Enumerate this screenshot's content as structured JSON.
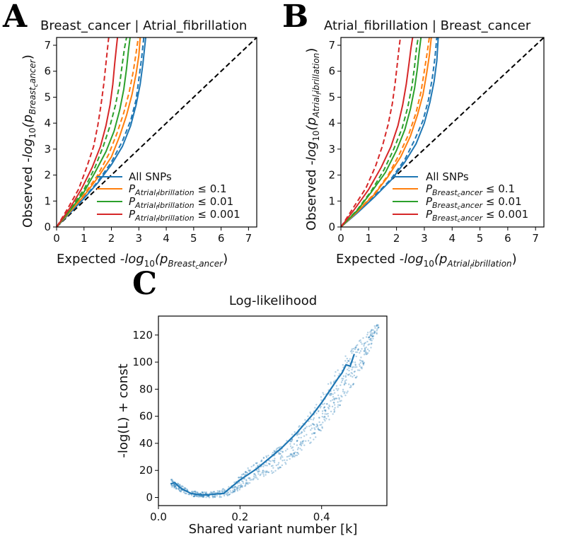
{
  "panels": {
    "A": {
      "letter": "A",
      "title": "Breast_cancer | Atrial_fibrillation",
      "xlabel_prefix": "Expected -",
      "xlabel_fn": "log",
      "xlabel_sub10": "10",
      "xlabel_p": "(p",
      "xlabel_sub": "Breast",
      "xlabel_subsub": "c",
      "xlabel_sub2": "ancer",
      "xlabel_close": ")",
      "ylabel_prefix": "Observed -",
      "ylabel_fn": "log",
      "ylabel_sub10": "10",
      "ylabel_p": "(p",
      "ylabel_sub": "Breast",
      "ylabel_subsub": "c",
      "ylabel_sub2": "ancer",
      "ylabel_close": ")",
      "legend": [
        {
          "label": "All SNPs",
          "color": "#1f77b4",
          "kind": "plain"
        },
        {
          "p": "P",
          "sub": "Atrial",
          "subsub": "f",
          "sub2": "ibrillation",
          "rel": " ≤ 0.1",
          "color": "#ff7f0e",
          "kind": "math"
        },
        {
          "p": "P",
          "sub": "Atrial",
          "subsub": "f",
          "sub2": "ibrillation",
          "rel": " ≤ 0.01",
          "color": "#2ca02c",
          "kind": "math"
        },
        {
          "p": "P",
          "sub": "Atrial",
          "subsub": "f",
          "sub2": "ibrillation",
          "rel": " ≤ 0.001",
          "color": "#d62728",
          "kind": "math"
        }
      ]
    },
    "B": {
      "letter": "B",
      "title": "Atrial_fibrillation | Breast_cancer",
      "xlabel_prefix": "Expected -",
      "xlabel_fn": "log",
      "xlabel_sub10": "10",
      "xlabel_p": "(p",
      "xlabel_sub": "Atrial",
      "xlabel_subsub": "f",
      "xlabel_sub2": "ibrillation",
      "xlabel_close": ")",
      "ylabel_prefix": "Observed -",
      "ylabel_fn": "log",
      "ylabel_sub10": "10",
      "ylabel_p": "(p",
      "ylabel_sub": "Atrial",
      "ylabel_subsub": "f",
      "ylabel_sub2": "ibrillation",
      "ylabel_close": ")",
      "legend": [
        {
          "label": "All SNPs",
          "color": "#1f77b4",
          "kind": "plain"
        },
        {
          "p": "P",
          "sub": "Breast",
          "subsub": "c",
          "sub2": "ancer",
          "rel": " ≤ 0.1",
          "color": "#ff7f0e",
          "kind": "math"
        },
        {
          "p": "P",
          "sub": "Breast",
          "subsub": "c",
          "sub2": "ancer",
          "rel": " ≤ 0.01",
          "color": "#2ca02c",
          "kind": "math"
        },
        {
          "p": "P",
          "sub": "Breast",
          "subsub": "c",
          "sub2": "ancer",
          "rel": " ≤ 0.001",
          "color": "#d62728",
          "kind": "math"
        }
      ]
    },
    "C": {
      "letter": "C",
      "title": "Log-likelihood",
      "xlabel": "Shared variant number [k]",
      "ylabel": "-log(L) + const"
    }
  },
  "chart_data": [
    {
      "id": "A",
      "type": "line",
      "title": "Breast_cancer | Atrial_fibrillation",
      "xlim": [
        0,
        7.3
      ],
      "ylim": [
        0,
        7.3
      ],
      "xticks": [
        0,
        1,
        2,
        3,
        4,
        5,
        6,
        7
      ],
      "yticks": [
        0,
        1,
        2,
        3,
        4,
        5,
        6,
        7
      ],
      "diagonal": {
        "style": "dashed",
        "color": "#000000"
      },
      "series": [
        {
          "name": "All SNPs",
          "color": "#1f77b4",
          "style": "solid",
          "x": [
            0,
            0.5,
            1.0,
            1.5,
            2.0,
            2.4,
            2.7,
            2.9,
            3.05,
            3.15,
            3.25
          ],
          "y": [
            0,
            0.55,
            1.1,
            1.7,
            2.4,
            3.1,
            3.9,
            4.7,
            5.5,
            6.3,
            7.3
          ]
        },
        {
          "name": "All SNPs (theoretical)",
          "color": "#1f77b4",
          "style": "dashed",
          "x": [
            0,
            0.5,
            1.0,
            1.5,
            2.0,
            2.4,
            2.7,
            2.9,
            3.0,
            3.1,
            3.18
          ],
          "y": [
            0,
            0.56,
            1.12,
            1.75,
            2.5,
            3.3,
            4.1,
            4.9,
            5.7,
            6.5,
            7.3
          ]
        },
        {
          "name": "P ≤ 0.1",
          "color": "#ff7f0e",
          "style": "solid",
          "x": [
            0,
            0.5,
            1.0,
            1.5,
            2.0,
            2.3,
            2.55,
            2.75,
            2.9,
            3.0,
            3.05
          ],
          "y": [
            0,
            0.6,
            1.2,
            1.9,
            2.7,
            3.5,
            4.3,
            5.1,
            5.9,
            6.6,
            7.3
          ]
        },
        {
          "name": "P ≤ 0.1 (theoretical)",
          "color": "#ff7f0e",
          "style": "dashed",
          "x": [
            0,
            0.5,
            1.0,
            1.5,
            1.9,
            2.2,
            2.45,
            2.65,
            2.8,
            2.9,
            2.98
          ],
          "y": [
            0,
            0.62,
            1.25,
            2.0,
            2.8,
            3.6,
            4.4,
            5.2,
            6.0,
            6.7,
            7.3
          ]
        },
        {
          "name": "P ≤ 0.01",
          "color": "#2ca02c",
          "style": "solid",
          "x": [
            0,
            0.5,
            1.0,
            1.4,
            1.8,
            2.1,
            2.3,
            2.45,
            2.55,
            2.62,
            2.68
          ],
          "y": [
            0,
            0.65,
            1.35,
            2.1,
            2.9,
            3.7,
            4.5,
            5.3,
            6.1,
            6.8,
            7.3
          ]
        },
        {
          "name": "P ≤ 0.01 (theoretical)",
          "color": "#2ca02c",
          "style": "dashed",
          "x": [
            0,
            0.5,
            1.0,
            1.4,
            1.7,
            1.95,
            2.15,
            2.3,
            2.4,
            2.48,
            2.55
          ],
          "y": [
            0,
            0.7,
            1.45,
            2.3,
            3.1,
            3.9,
            4.7,
            5.5,
            6.3,
            6.9,
            7.3
          ]
        },
        {
          "name": "P ≤ 0.001",
          "color": "#d62728",
          "style": "solid",
          "x": [
            0,
            0.5,
            0.9,
            1.3,
            1.6,
            1.8,
            1.95,
            2.05,
            2.12,
            2.18,
            2.22
          ],
          "y": [
            0,
            0.75,
            1.45,
            2.3,
            3.1,
            3.9,
            4.7,
            5.5,
            6.3,
            6.9,
            7.3
          ]
        },
        {
          "name": "P ≤ 0.001 (theoretical)",
          "color": "#d62728",
          "style": "dashed",
          "x": [
            0,
            0.4,
            0.8,
            1.1,
            1.35,
            1.5,
            1.62,
            1.72,
            1.8,
            1.86,
            1.9
          ],
          "y": [
            0,
            0.7,
            1.45,
            2.3,
            3.1,
            3.9,
            4.7,
            5.5,
            6.3,
            6.9,
            7.3
          ]
        }
      ]
    },
    {
      "id": "B",
      "type": "line",
      "title": "Atrial_fibrillation | Breast_cancer",
      "xlim": [
        0,
        7.3
      ],
      "ylim": [
        0,
        7.3
      ],
      "xticks": [
        0,
        1,
        2,
        3,
        4,
        5,
        6,
        7
      ],
      "yticks": [
        0,
        1,
        2,
        3,
        4,
        5,
        6,
        7
      ],
      "diagonal": {
        "style": "dashed",
        "color": "#000000"
      },
      "series": [
        {
          "name": "All SNPs",
          "color": "#1f77b4",
          "style": "solid",
          "x": [
            0,
            0.6,
            1.2,
            1.8,
            2.3,
            2.7,
            3.0,
            3.2,
            3.35,
            3.45,
            3.5
          ],
          "y": [
            0,
            0.55,
            1.15,
            1.8,
            2.5,
            3.2,
            4.0,
            4.8,
            5.6,
            6.4,
            7.3
          ]
        },
        {
          "name": "All SNPs (theoretical)",
          "color": "#1f77b4",
          "style": "dashed",
          "x": [
            0,
            0.6,
            1.2,
            1.8,
            2.3,
            2.65,
            2.95,
            3.15,
            3.28,
            3.38,
            3.45
          ],
          "y": [
            0,
            0.57,
            1.18,
            1.85,
            2.6,
            3.35,
            4.1,
            4.9,
            5.7,
            6.5,
            7.3
          ]
        },
        {
          "name": "P ≤ 0.1",
          "color": "#ff7f0e",
          "style": "solid",
          "x": [
            0,
            0.6,
            1.2,
            1.7,
            2.15,
            2.5,
            2.75,
            2.95,
            3.08,
            3.18,
            3.25
          ],
          "y": [
            0,
            0.6,
            1.25,
            1.95,
            2.7,
            3.5,
            4.3,
            5.1,
            5.9,
            6.6,
            7.3
          ]
        },
        {
          "name": "P ≤ 0.1 (theoretical)",
          "color": "#ff7f0e",
          "style": "dashed",
          "x": [
            0,
            0.6,
            1.2,
            1.7,
            2.1,
            2.45,
            2.7,
            2.88,
            3.0,
            3.1,
            3.18
          ],
          "y": [
            0,
            0.62,
            1.28,
            2.0,
            2.8,
            3.6,
            4.4,
            5.2,
            6.0,
            6.7,
            7.3
          ]
        },
        {
          "name": "P ≤ 0.01",
          "color": "#2ca02c",
          "style": "solid",
          "x": [
            0,
            0.6,
            1.1,
            1.6,
            2.0,
            2.3,
            2.5,
            2.65,
            2.75,
            2.82,
            2.88
          ],
          "y": [
            0,
            0.65,
            1.35,
            2.1,
            2.95,
            3.75,
            4.55,
            5.35,
            6.1,
            6.8,
            7.3
          ]
        },
        {
          "name": "P ≤ 0.01 (theoretical)",
          "color": "#2ca02c",
          "style": "dashed",
          "x": [
            0,
            0.6,
            1.1,
            1.55,
            1.9,
            2.2,
            2.4,
            2.55,
            2.65,
            2.72,
            2.78
          ],
          "y": [
            0,
            0.68,
            1.4,
            2.2,
            3.0,
            3.8,
            4.6,
            5.4,
            6.2,
            6.9,
            7.3
          ]
        },
        {
          "name": "P ≤ 0.001",
          "color": "#d62728",
          "style": "solid",
          "x": [
            0,
            0.5,
            1.0,
            1.45,
            1.8,
            2.05,
            2.22,
            2.35,
            2.45,
            2.52,
            2.58
          ],
          "y": [
            0,
            0.7,
            1.45,
            2.3,
            3.1,
            3.9,
            4.7,
            5.5,
            6.3,
            6.9,
            7.3
          ]
        },
        {
          "name": "P ≤ 0.001 (theoretical)",
          "color": "#d62728",
          "style": "dashed",
          "x": [
            0,
            0.45,
            0.9,
            1.25,
            1.5,
            1.7,
            1.85,
            1.95,
            2.03,
            2.09,
            2.14
          ],
          "y": [
            0,
            0.75,
            1.5,
            2.35,
            3.15,
            3.95,
            4.75,
            5.55,
            6.3,
            6.9,
            7.3
          ]
        }
      ]
    },
    {
      "id": "C",
      "type": "line",
      "title": "Log-likelihood",
      "xlabel": "Shared variant number [k]",
      "ylabel": "-log(L) + const",
      "xlim": [
        0.0,
        0.56
      ],
      "ylim": [
        -6,
        134
      ],
      "xticks": [
        0.0,
        0.2,
        0.4
      ],
      "yticks": [
        0,
        20,
        40,
        60,
        80,
        100,
        120
      ],
      "series": [
        {
          "name": "mean",
          "color": "#1f77b4",
          "style": "solid",
          "x": [
            0.03,
            0.04,
            0.05,
            0.06,
            0.08,
            0.1,
            0.12,
            0.14,
            0.16,
            0.18,
            0.2,
            0.22,
            0.24,
            0.26,
            0.28,
            0.3,
            0.32,
            0.34,
            0.36,
            0.38,
            0.4,
            0.42,
            0.44,
            0.45,
            0.46,
            0.47,
            0.48
          ],
          "y": [
            10,
            11,
            8,
            6,
            3,
            2,
            2,
            2.5,
            3,
            8,
            13,
            17,
            21,
            26,
            31,
            36,
            42,
            48,
            55,
            62,
            70,
            79,
            88,
            92,
            98,
            97,
            106
          ]
        },
        {
          "name": "replicates (scatter band)",
          "color": "#1f77b4",
          "style": "scatter",
          "x": [
            0.03,
            0.05,
            0.08,
            0.1,
            0.12,
            0.15,
            0.18,
            0.2,
            0.22,
            0.25,
            0.28,
            0.3,
            0.33,
            0.35,
            0.38,
            0.4,
            0.42,
            0.44,
            0.46,
            0.48,
            0.5,
            0.52,
            0.54
          ],
          "y_low": [
            8,
            5,
            1,
            0,
            0,
            0,
            2,
            6,
            10,
            14,
            18,
            22,
            28,
            34,
            42,
            50,
            58,
            66,
            74,
            84,
            96,
            110,
            124
          ],
          "y_high": [
            14,
            10,
            5,
            4,
            4,
            5,
            10,
            16,
            22,
            28,
            34,
            40,
            48,
            56,
            66,
            76,
            86,
            96,
            106,
            112,
            118,
            124,
            130
          ]
        }
      ]
    }
  ]
}
